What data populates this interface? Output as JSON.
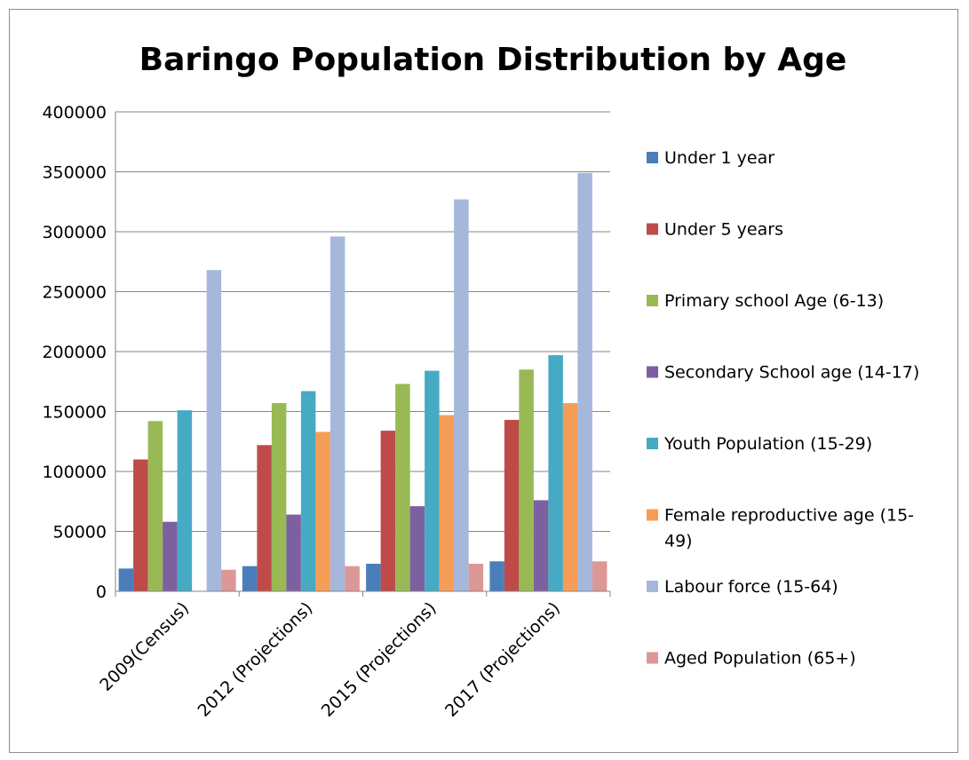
{
  "chart_data": {
    "type": "bar",
    "title": "Baringo Population Distribution by Age",
    "xlabel": "",
    "ylabel": "",
    "ylim": [
      0,
      400000
    ],
    "yticks": [
      0,
      50000,
      100000,
      150000,
      200000,
      250000,
      300000,
      350000,
      400000
    ],
    "grid": true,
    "legend_position": "right",
    "categories": [
      "2009(Census)",
      "2012 (Projections)",
      "2015 (Projections)",
      "2017 (Projections)"
    ],
    "series": [
      {
        "name": "Under 1 year",
        "color": "#4A7EBB",
        "values": [
          19000,
          21000,
          23000,
          25000
        ]
      },
      {
        "name": "Under 5 years",
        "color": "#BE4B48",
        "values": [
          110000,
          122000,
          134000,
          143000
        ]
      },
      {
        "name": "Primary school Age (6-13)",
        "color": "#98B954",
        "values": [
          142000,
          157000,
          173000,
          185000
        ]
      },
      {
        "name": "Secondary School age (14-17)",
        "color": "#7D60A0",
        "values": [
          58000,
          64000,
          71000,
          76000
        ]
      },
      {
        "name": "Youth Population (15-29)",
        "color": "#46AAC5",
        "values": [
          151000,
          167000,
          184000,
          197000
        ]
      },
      {
        "name": "Female reproductive age (15-49)",
        "legend_lines": [
          "Female  reproductive age (15-",
          "49)"
        ],
        "color": "#F59D56",
        "values": [
          null,
          133000,
          147000,
          157000
        ]
      },
      {
        "name": "Labour force (15-64)",
        "color": "#A5B7DB",
        "values": [
          268000,
          296000,
          327000,
          349000
        ]
      },
      {
        "name": "Aged Population (65+)",
        "color": "#DB9896",
        "values": [
          18000,
          21000,
          23000,
          25000
        ]
      }
    ]
  }
}
